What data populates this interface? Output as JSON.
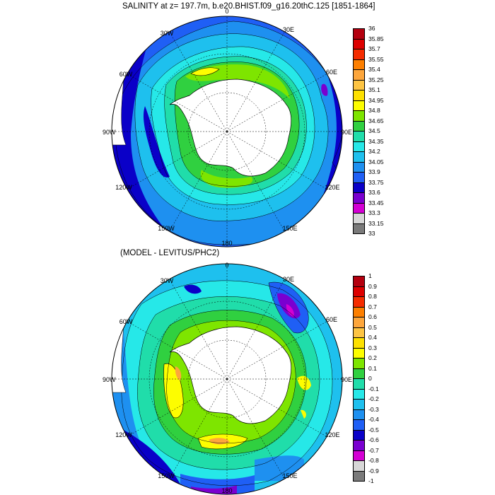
{
  "panels": [
    {
      "title": "SALINITY at z= 197.7m, b.e20.BHIST.f09_g16.20thC.125 [1851-1864]",
      "lon_labels": [
        "0",
        "30E",
        "60E",
        "90E",
        "120E",
        "150E",
        "180",
        "150W",
        "120W",
        "90W",
        "60W",
        "30W"
      ],
      "colorbar": {
        "labels": [
          "36",
          "35.85",
          "35.7",
          "35.55",
          "35.4",
          "35.25",
          "35.1",
          "34.95",
          "34.8",
          "34.65",
          "34.5",
          "34.35",
          "34.2",
          "34.05",
          "33.9",
          "33.75",
          "33.6",
          "33.45",
          "33.3",
          "33.15",
          "33"
        ],
        "colors": [
          "#b4000f",
          "#dd0000",
          "#f52c00",
          "#fd7f00",
          "#fda63c",
          "#fdc443",
          "#fde000",
          "#fdfd00",
          "#7ee500",
          "#30d040",
          "#20ddaa",
          "#26e8e8",
          "#1ec0ee",
          "#1e90f0",
          "#1f5ff5",
          "#0a00c8",
          "#7a00d0",
          "#d400d4",
          "#d7d7d7",
          "#7a7a7a"
        ]
      }
    },
    {
      "title": "(MODEL - LEVITUS/PHC2)",
      "lon_labels": [
        "0",
        "30E",
        "60E",
        "90E",
        "120E",
        "150E",
        "180",
        "150W",
        "120W",
        "90W",
        "60W",
        "30W"
      ],
      "colorbar": {
        "labels": [
          "1",
          "0.9",
          "0.8",
          "0.7",
          "0.6",
          "0.5",
          "0.4",
          "0.3",
          "0.2",
          "0.1",
          "0",
          "-0.1",
          "-0.2",
          "-0.3",
          "-0.4",
          "-0.5",
          "-0.6",
          "-0.7",
          "-0.8",
          "-0.9",
          "-1"
        ],
        "colors": [
          "#b4000f",
          "#dd0000",
          "#f52c00",
          "#fd7f00",
          "#fda63c",
          "#fdc443",
          "#fde000",
          "#fdfd00",
          "#7ee500",
          "#30d040",
          "#20ddaa",
          "#26e8e8",
          "#1ec0ee",
          "#1e90f0",
          "#1f5ff5",
          "#0a00c8",
          "#7a00d0",
          "#d400d4",
          "#d7d7d7",
          "#7a7a7a"
        ]
      }
    }
  ]
}
